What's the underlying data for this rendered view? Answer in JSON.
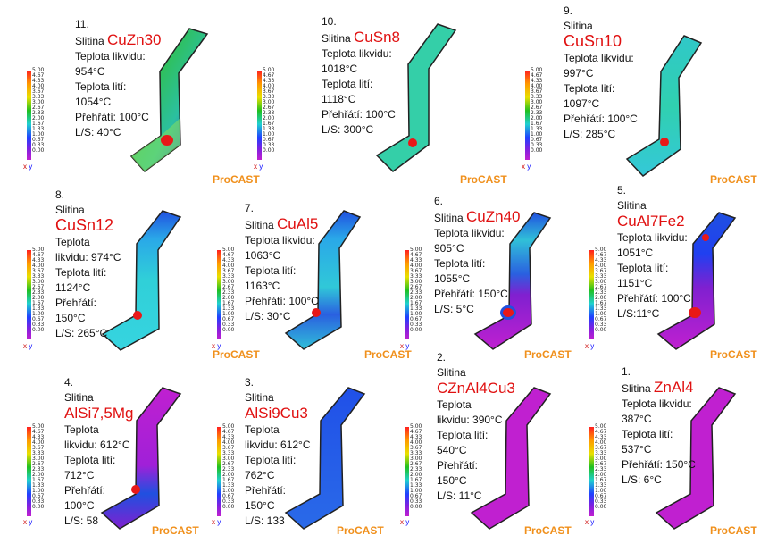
{
  "brand": "ProCAST",
  "scale_ticks": [
    "5.00",
    "4.67",
    "4.33",
    "4.00",
    "3.67",
    "3.33",
    "3.00",
    "2.67",
    "2.33",
    "2.00",
    "1.67",
    "1.33",
    "1.00",
    "0.67",
    "0.33",
    "0.00"
  ],
  "axis": {
    "x": "x",
    "y": "y"
  },
  "panels": [
    {
      "num": "11.",
      "alloy_prefix": "Slitina ",
      "alloy": "CuZn30",
      "liq_label": "Teplota likvidu:",
      "liq": "954°C",
      "cast_label": "Teplota lití:",
      "cast": "1054°C",
      "superheat": "Přehřátí: 100°C",
      "ls": "L/S: 40°C"
    },
    {
      "num": "10.",
      "alloy_prefix": "Slitina ",
      "alloy": "CuSn8",
      "liq_label": "Teplota likvidu:",
      "liq": "1018°C",
      "cast_label": "Teplota lití:",
      "cast": "1118°C",
      "superheat": "Přehřátí: 100°C",
      "ls": "L/S: 300°C"
    },
    {
      "num": "9.",
      "alloy_prefix": "Slitina",
      "alloy": "CuSn10",
      "liq_label": "Teplota likvidu:",
      "liq": "997°C",
      "cast_label": "Teplota lití:",
      "cast": "1097°C",
      "superheat": "Přehřátí: 100°C",
      "ls": "L/S: 285°C"
    },
    {
      "num": "8.",
      "alloy_prefix": "Slitina",
      "alloy": "CuSn12",
      "liq_label": "Teplota",
      "liq": "likvidu: 974°C",
      "cast_label": "Teplota lití:",
      "cast": "1124°C",
      "superheat": "Přehřátí:",
      "superheat2": "150°C",
      "ls": "L/S: 265°C"
    },
    {
      "num": "7.",
      "alloy_prefix": "Slitina ",
      "alloy": "CuAl5",
      "liq_label": "Teplota likvidu:",
      "liq": "1063°C",
      "cast_label": "Teplota lití:",
      "cast": "1163°C",
      "superheat": "Přehřátí: 100°C",
      "ls": "L/S: 30°C"
    },
    {
      "num": "6.",
      "alloy_prefix": "Slitina ",
      "alloy": "CuZn40",
      "liq_label": "Teplota likvidu:",
      "liq": "905°C",
      "cast_label": "Teplota lití:",
      "cast": "1055°C",
      "superheat": "Přehřátí: 150°C",
      "ls": "L/S: 5°C"
    },
    {
      "num": "5.",
      "alloy_prefix": "Slitina",
      "alloy": "CuAl7Fe2",
      "liq_label": "Teplota likvidu:",
      "liq": "1051°C",
      "cast_label": "Teplota lití:",
      "cast": "1151°C",
      "superheat": "Přehřátí: 100°C",
      "ls": "L/S:11°C"
    },
    {
      "num": "4.",
      "alloy_prefix": "Slitina",
      "alloy": "AlSi7,5Mg",
      "liq_label": "Teplota",
      "liq": "likvidu: 612°C",
      "cast_label": "Teplota lití:",
      "cast": "712°C",
      "superheat": "Přehřátí:",
      "superheat2": "100°C",
      "ls": "L/S: 58"
    },
    {
      "num": "3.",
      "alloy_prefix": "Slitina",
      "alloy": "AlSi9Cu3",
      "liq_label": "Teplota",
      "liq": "likvidu: 612°C",
      "cast_label": "Teplota lití:",
      "cast": "762°C",
      "superheat": "Přehřátí:",
      "superheat2": "150°C",
      "ls": "L/S: 133"
    },
    {
      "num": "2.",
      "alloy_prefix": "Slitina",
      "alloy": "CZnAl4Cu3",
      "liq_label": "Teplota",
      "liq": "likvidu: 390°C",
      "cast_label": "Teplota lití:",
      "cast": "540°C",
      "superheat": "Přehřátí:",
      "superheat2": "150°C",
      "ls": "L/S: 11°C"
    },
    {
      "num": "1.",
      "alloy_prefix": "Slitina ",
      "alloy": "ZnAl4",
      "liq_label": "Teplota likvidu:",
      "liq": "387°C",
      "cast_label": "Teplota lití:",
      "cast": "537°C",
      "superheat": "Přehřátí: 150°C",
      "ls": "L/S: 6°C"
    }
  ]
}
